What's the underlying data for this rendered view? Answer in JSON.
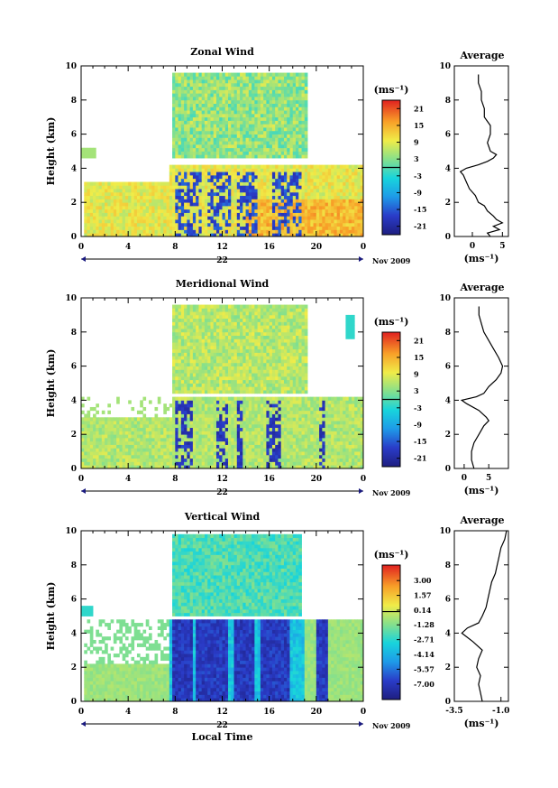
{
  "chart_data": [
    {
      "type": "heatmap",
      "title": "Zonal Wind",
      "ylabel": "Height (km)",
      "xlabel": "",
      "xlim": [
        0,
        24
      ],
      "ylim": [
        0,
        10
      ],
      "xticks": [
        "0",
        "4",
        "8",
        "12",
        "16",
        "20",
        "0"
      ],
      "yticks": [
        "0",
        "2",
        "4",
        "6",
        "8",
        "10"
      ],
      "date_label": "22",
      "date_suffix": "Nov 2009",
      "colorbar": {
        "unit_label": "(ms⁻¹)",
        "vmin": -24,
        "vmax": 24,
        "ticks": [
          "21",
          "15",
          "9",
          "3",
          "-3",
          "-9",
          "-15",
          "-21"
        ],
        "tick_values": [
          21,
          15,
          9,
          3,
          -3,
          -9,
          -15,
          -21
        ]
      },
      "profile": {
        "title": "Average",
        "xlabel": "(ms⁻¹)",
        "xlim": [
          -3,
          6
        ],
        "xticks": [
          "0",
          "5"
        ],
        "xtick_values": [
          0,
          5
        ],
        "yticks": [
          "0",
          "2",
          "4",
          "6",
          "8",
          "10"
        ],
        "height_km": [
          0.0,
          0.2,
          0.4,
          0.6,
          0.8,
          1.0,
          1.2,
          1.5,
          1.8,
          2.0,
          2.4,
          2.8,
          3.2,
          3.6,
          3.8,
          4.0,
          4.2,
          4.4,
          4.6,
          4.8,
          5.0,
          5.5,
          6.0,
          6.5,
          7.0,
          7.5,
          8.0,
          8.5,
          9.0,
          9.5
        ],
        "value_ms": [
          3.0,
          2.5,
          4.5,
          3.5,
          5.0,
          4.0,
          3.5,
          2.5,
          2.0,
          1.0,
          0.5,
          -0.5,
          -1.0,
          -1.5,
          -2.0,
          -1.0,
          1.0,
          2.5,
          3.5,
          4.0,
          3.0,
          2.5,
          3.0,
          3.0,
          2.0,
          2.0,
          1.5,
          1.5,
          1.0,
          1.0
        ]
      }
    },
    {
      "type": "heatmap",
      "title": "Meridional Wind",
      "ylabel": "Height (km)",
      "xlabel": "",
      "xlim": [
        0,
        24
      ],
      "ylim": [
        0,
        10
      ],
      "xticks": [
        "0",
        "4",
        "8",
        "12",
        "16",
        "20",
        "0"
      ],
      "yticks": [
        "0",
        "2",
        "4",
        "6",
        "8",
        "10"
      ],
      "date_label": "22",
      "date_suffix": "Nov 2009",
      "colorbar": {
        "unit_label": "(ms⁻¹)",
        "vmin": -24,
        "vmax": 24,
        "ticks": [
          "21",
          "15",
          "9",
          "3",
          "-3",
          "-9",
          "-15",
          "-21"
        ],
        "tick_values": [
          21,
          15,
          9,
          3,
          -3,
          -9,
          -15,
          -21
        ]
      },
      "profile": {
        "title": "Average",
        "xlabel": "(ms⁻¹)",
        "xlim": [
          -2,
          9
        ],
        "xticks": [
          "0",
          "5"
        ],
        "xtick_values": [
          0,
          5
        ],
        "yticks": [
          "0",
          "2",
          "4",
          "6",
          "8",
          "10"
        ],
        "height_km": [
          0.0,
          0.5,
          1.0,
          1.5,
          2.0,
          2.5,
          2.8,
          3.0,
          3.4,
          3.8,
          4.0,
          4.2,
          4.4,
          4.8,
          5.2,
          5.6,
          6.0,
          6.5,
          7.0,
          7.5,
          8.0,
          8.5,
          9.0,
          9.5
        ],
        "value_ms": [
          2.0,
          1.5,
          1.5,
          2.0,
          3.0,
          4.0,
          5.0,
          4.5,
          3.0,
          0.5,
          -0.5,
          2.5,
          4.0,
          5.0,
          6.5,
          7.5,
          7.8,
          7.0,
          6.0,
          5.0,
          4.0,
          3.5,
          3.0,
          3.0
        ]
      }
    },
    {
      "type": "heatmap",
      "title": "Vertical Wind",
      "ylabel": "Height (km)",
      "xlabel": "Local Time",
      "xlim": [
        0,
        24
      ],
      "ylim": [
        0,
        10
      ],
      "xticks": [
        "0",
        "4",
        "8",
        "12",
        "16",
        "20",
        "0"
      ],
      "yticks": [
        "0",
        "2",
        "4",
        "6",
        "8",
        "10"
      ],
      "date_label": "22",
      "date_suffix": "Nov 2009",
      "colorbar": {
        "unit_label": "(ms⁻¹)",
        "vmin": -8.5,
        "vmax": 4.5,
        "ticks": [
          "3.00",
          "1.57",
          "0.14",
          "-1.28",
          "-2.71",
          "-4.14",
          "-5.57",
          "-7.00"
        ],
        "tick_values": [
          3.0,
          1.57,
          0.14,
          -1.28,
          -2.71,
          -4.14,
          -5.57,
          -7.0
        ]
      },
      "profile": {
        "title": "Average",
        "xlabel": "(ms⁻¹)",
        "xlim": [
          -3.5,
          -0.6
        ],
        "xticks": [
          "-3.5",
          "-1.0"
        ],
        "xtick_values": [
          -3.5,
          -1.0
        ],
        "yticks": [
          "0",
          "2",
          "4",
          "6",
          "8",
          "10"
        ],
        "height_km": [
          0.0,
          0.5,
          1.0,
          1.5,
          2.0,
          2.5,
          3.0,
          3.5,
          4.0,
          4.3,
          4.6,
          5.0,
          5.5,
          6.0,
          6.5,
          7.0,
          7.5,
          8.0,
          8.5,
          9.0,
          9.5,
          10.0
        ],
        "value_ms": [
          -2.0,
          -2.1,
          -2.2,
          -2.1,
          -2.3,
          -2.2,
          -2.0,
          -2.5,
          -3.1,
          -2.8,
          -2.2,
          -2.0,
          -1.8,
          -1.7,
          -1.6,
          -1.5,
          -1.3,
          -1.2,
          -1.1,
          -1.0,
          -0.8,
          -0.7
        ]
      }
    }
  ]
}
